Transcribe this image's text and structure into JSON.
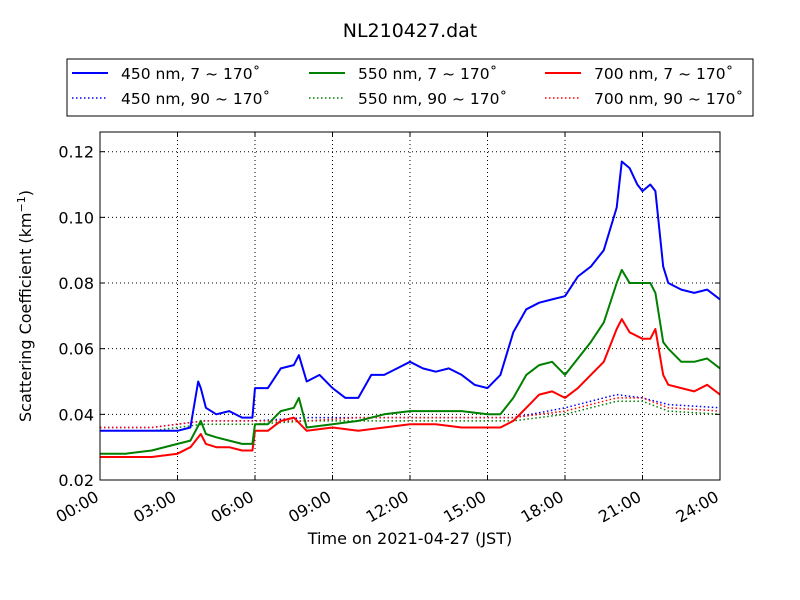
{
  "chart_data": {
    "type": "line",
    "title": "NL210427.dat",
    "xlabel": "Time on 2021-04-27 (JST)",
    "ylabel_main": "Scattering Coefficient (km",
    "ylabel_sup": "−1",
    "ylabel_close": ")",
    "xlim": [
      "00:00",
      "24:00"
    ],
    "ylim": [
      0.02,
      0.126
    ],
    "grid": true,
    "legend_placement": "top, 3 columns",
    "x_ticks": [
      "00:00",
      "03:00",
      "06:00",
      "09:00",
      "12:00",
      "15:00",
      "18:00",
      "21:00",
      "24:00"
    ],
    "y_ticks": [
      "0.02",
      "0.04",
      "0.06",
      "0.08",
      "0.10",
      "0.12"
    ],
    "series": [
      {
        "name": "450 nm, 7 ~ 170˚",
        "color": "#0000ff",
        "style": "solid",
        "x": [
          0,
          0.5,
          1,
          2,
          3,
          3.5,
          3.8,
          3.9,
          4.1,
          4.5,
          5,
          5.5,
          5.9,
          6,
          6.5,
          7,
          7.5,
          7.7,
          8,
          8.5,
          9,
          9.5,
          10,
          10.5,
          11,
          11.5,
          12,
          12.5,
          13,
          13.5,
          14,
          14.5,
          15,
          15.5,
          16,
          16.5,
          17,
          17.5,
          18,
          18.5,
          19,
          19.5,
          20,
          20.2,
          20.5,
          20.8,
          21,
          21.3,
          21.5,
          21.8,
          22,
          22.5,
          23,
          23.5,
          24
        ],
        "y": [
          0.035,
          0.035,
          0.035,
          0.035,
          0.035,
          0.036,
          0.05,
          0.048,
          0.042,
          0.04,
          0.041,
          0.039,
          0.039,
          0.048,
          0.048,
          0.054,
          0.055,
          0.058,
          0.05,
          0.052,
          0.048,
          0.045,
          0.045,
          0.052,
          0.052,
          0.054,
          0.056,
          0.054,
          0.053,
          0.054,
          0.052,
          0.049,
          0.048,
          0.052,
          0.065,
          0.072,
          0.074,
          0.075,
          0.076,
          0.082,
          0.085,
          0.09,
          0.103,
          0.117,
          0.115,
          0.11,
          0.108,
          0.11,
          0.108,
          0.085,
          0.08,
          0.078,
          0.077,
          0.078,
          0.075
        ]
      },
      {
        "name": "550 nm, 7 ~ 170˚",
        "color": "#008000",
        "style": "solid",
        "x": [
          0,
          1,
          2,
          3,
          3.5,
          3.9,
          4.1,
          4.5,
          5,
          5.5,
          5.9,
          6,
          6.5,
          7,
          7.5,
          7.7,
          8,
          9,
          10,
          11,
          12,
          13,
          14,
          15,
          15.5,
          16,
          16.5,
          17,
          17.5,
          18,
          18.5,
          19,
          19.5,
          20,
          20.2,
          20.5,
          21,
          21.3,
          21.5,
          21.8,
          22,
          22.5,
          23,
          23.5,
          24
        ],
        "y": [
          0.028,
          0.028,
          0.029,
          0.031,
          0.032,
          0.038,
          0.034,
          0.033,
          0.032,
          0.031,
          0.031,
          0.037,
          0.037,
          0.041,
          0.042,
          0.045,
          0.036,
          0.037,
          0.038,
          0.04,
          0.041,
          0.041,
          0.041,
          0.04,
          0.04,
          0.045,
          0.052,
          0.055,
          0.056,
          0.052,
          0.057,
          0.062,
          0.068,
          0.08,
          0.084,
          0.08,
          0.08,
          0.08,
          0.077,
          0.062,
          0.06,
          0.056,
          0.056,
          0.057,
          0.054
        ]
      },
      {
        "name": "700 nm, 7 ~ 170˚",
        "color": "#ff0000",
        "style": "solid",
        "x": [
          0,
          1,
          2,
          3,
          3.5,
          3.9,
          4.1,
          4.5,
          5,
          5.5,
          5.9,
          6,
          6.5,
          7,
          7.5,
          8,
          9,
          10,
          11,
          12,
          13,
          14,
          15,
          15.5,
          16,
          16.5,
          17,
          17.5,
          18,
          18.5,
          19,
          19.5,
          20,
          20.2,
          20.5,
          21,
          21.3,
          21.5,
          21.8,
          22,
          22.5,
          23,
          23.5,
          24
        ],
        "y": [
          0.027,
          0.027,
          0.027,
          0.028,
          0.03,
          0.034,
          0.031,
          0.03,
          0.03,
          0.029,
          0.029,
          0.035,
          0.035,
          0.038,
          0.039,
          0.035,
          0.036,
          0.035,
          0.036,
          0.037,
          0.037,
          0.036,
          0.036,
          0.036,
          0.038,
          0.042,
          0.046,
          0.047,
          0.045,
          0.048,
          0.052,
          0.056,
          0.066,
          0.069,
          0.065,
          0.063,
          0.063,
          0.066,
          0.052,
          0.049,
          0.048,
          0.047,
          0.049,
          0.046
        ]
      },
      {
        "name": "450 nm, 90 ~ 170˚",
        "color": "#0000ff",
        "style": "dotted",
        "x": [
          0,
          2,
          4,
          6,
          8,
          10,
          12,
          14,
          16,
          18,
          20,
          21,
          22,
          24
        ],
        "y": [
          0.036,
          0.036,
          0.038,
          0.038,
          0.039,
          0.039,
          0.039,
          0.039,
          0.039,
          0.042,
          0.046,
          0.045,
          0.043,
          0.042
        ]
      },
      {
        "name": "550 nm, 90 ~ 170˚",
        "color": "#008000",
        "style": "dotted",
        "x": [
          0,
          2,
          4,
          6,
          8,
          10,
          12,
          14,
          16,
          18,
          20,
          21,
          22,
          24
        ],
        "y": [
          0.035,
          0.035,
          0.037,
          0.037,
          0.038,
          0.038,
          0.038,
          0.038,
          0.038,
          0.04,
          0.044,
          0.044,
          0.041,
          0.04
        ]
      },
      {
        "name": "700 nm, 90 ~ 170˚",
        "color": "#ff0000",
        "style": "dotted",
        "x": [
          0,
          2,
          4,
          6,
          8,
          10,
          12,
          14,
          16,
          18,
          20,
          21,
          22,
          24
        ],
        "y": [
          0.036,
          0.036,
          0.038,
          0.038,
          0.038,
          0.039,
          0.039,
          0.039,
          0.039,
          0.041,
          0.045,
          0.045,
          0.042,
          0.041
        ]
      }
    ]
  }
}
